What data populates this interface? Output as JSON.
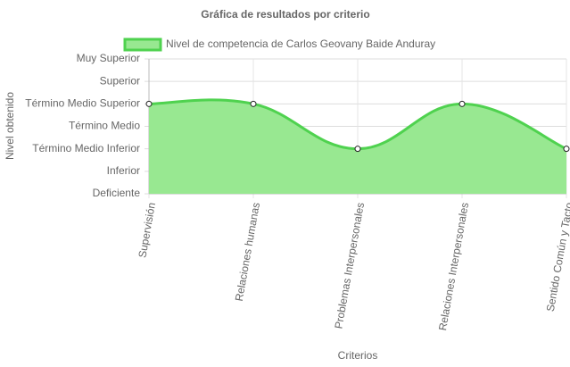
{
  "chart_data": {
    "type": "line",
    "title": "Gráfica de resultados por criterio",
    "x_label": "Criterios",
    "y_label": "Nivel obtenido",
    "categories": [
      "Supervisión",
      "Relaciones humanas",
      "Problemas Interpersonales",
      "Relaciones Interpersonales",
      "Sentido Común y Tacto"
    ],
    "series": [
      {
        "name": "Nivel de competencia de Carlos Geovany Baide Anduray",
        "color": "#4fd24f",
        "fill": "#98e891",
        "values": [
          4,
          4,
          2,
          4,
          2
        ]
      }
    ],
    "ylim": [
      0,
      6
    ],
    "yticks": [
      {
        "value": 0,
        "label": "Deficiente"
      },
      {
        "value": 1,
        "label": "Inferior"
      },
      {
        "value": 2,
        "label": "Término Medio Inferior"
      },
      {
        "value": 3,
        "label": "Término Medio"
      },
      {
        "value": 4,
        "label": "Término Medio Superior"
      },
      {
        "value": 5,
        "label": "Superior"
      },
      {
        "value": 6,
        "label": "Muy Superior"
      }
    ],
    "grid": true,
    "legend": "top"
  }
}
